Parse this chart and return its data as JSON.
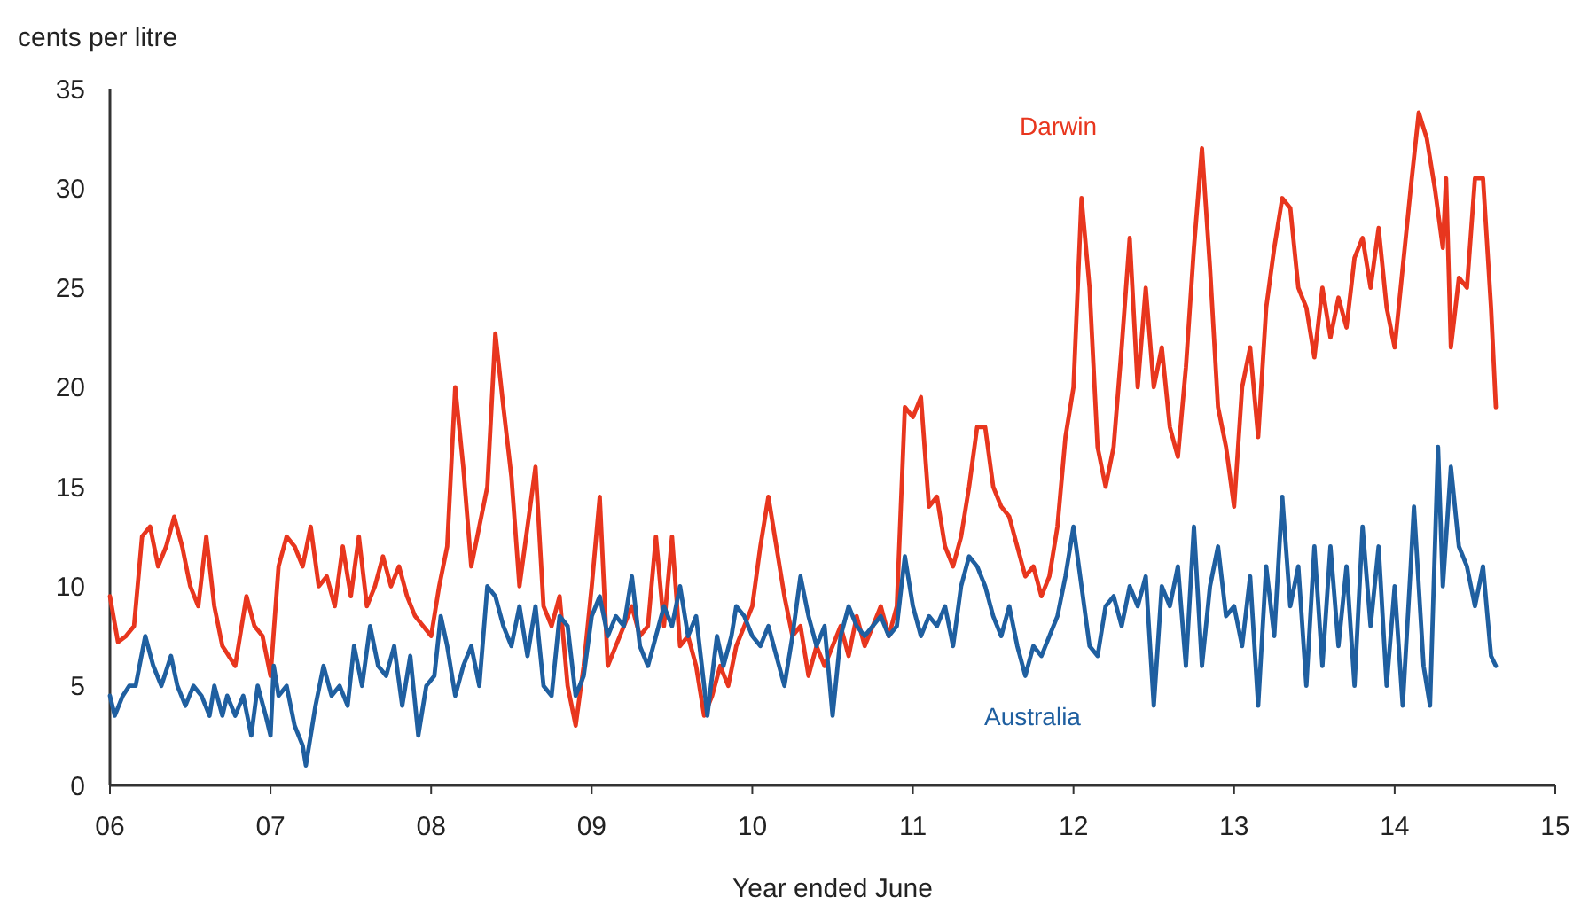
{
  "chart_data": {
    "type": "line",
    "xlabel": "Year ended June",
    "ylabel": "cents per litre",
    "xlim": [
      6,
      15
    ],
    "xticks": [
      {
        "value": 6,
        "label": "06"
      },
      {
        "value": 7,
        "label": "07"
      },
      {
        "value": 8,
        "label": "08"
      },
      {
        "value": 9,
        "label": "09"
      },
      {
        "value": 10,
        "label": "10"
      },
      {
        "value": 11,
        "label": "11"
      },
      {
        "value": 12,
        "label": "12"
      },
      {
        "value": 13,
        "label": "13"
      },
      {
        "value": 14,
        "label": "14"
      },
      {
        "value": 15,
        "label": "15"
      }
    ],
    "ylim": [
      0,
      35
    ],
    "yticks": [
      0,
      5,
      10,
      15,
      20,
      25,
      30,
      35
    ],
    "grid": false,
    "legend": false,
    "marker": "none",
    "line_style": "solid",
    "series": [
      {
        "name": "Darwin",
        "color": "#e8361e",
        "x": [
          6.0,
          6.05,
          6.1,
          6.15,
          6.2,
          6.25,
          6.3,
          6.35,
          6.4,
          6.45,
          6.5,
          6.55,
          6.6,
          6.65,
          6.7,
          6.78,
          6.85,
          6.9,
          6.95,
          7.0,
          7.05,
          7.1,
          7.15,
          7.2,
          7.25,
          7.3,
          7.35,
          7.4,
          7.45,
          7.5,
          7.55,
          7.6,
          7.65,
          7.7,
          7.75,
          7.8,
          7.85,
          7.9,
          7.95,
          8.0,
          8.05,
          8.1,
          8.15,
          8.2,
          8.25,
          8.3,
          8.35,
          8.4,
          8.45,
          8.5,
          8.55,
          8.6,
          8.65,
          8.7,
          8.75,
          8.8,
          8.85,
          8.9,
          8.95,
          9.0,
          9.05,
          9.1,
          9.15,
          9.2,
          9.25,
          9.3,
          9.35,
          9.4,
          9.45,
          9.5,
          9.55,
          9.6,
          9.65,
          9.7,
          9.75,
          9.8,
          9.85,
          9.9,
          9.95,
          10.0,
          10.05,
          10.1,
          10.15,
          10.2,
          10.25,
          10.3,
          10.35,
          10.4,
          10.45,
          10.5,
          10.55,
          10.6,
          10.65,
          10.7,
          10.75,
          10.8,
          10.85,
          10.9,
          10.95,
          11.0,
          11.05,
          11.1,
          11.15,
          11.2,
          11.25,
          11.3,
          11.35,
          11.4,
          11.45,
          11.5,
          11.55,
          11.6,
          11.65,
          11.7,
          11.75,
          11.8,
          11.85,
          11.9,
          11.95,
          12.0,
          12.05,
          12.1,
          12.15,
          12.2,
          12.25,
          12.3,
          12.35,
          12.4,
          12.45,
          12.5,
          12.55,
          12.6,
          12.65,
          12.7,
          12.75,
          12.8,
          12.85,
          12.9,
          12.95,
          13.0,
          13.05,
          13.1,
          13.15,
          13.2,
          13.25,
          13.3,
          13.35,
          13.4,
          13.45,
          13.5,
          13.55,
          13.6,
          13.65,
          13.7,
          13.75,
          13.8,
          13.85,
          13.9,
          13.95,
          14.0,
          14.1,
          14.15,
          14.2,
          14.25,
          14.3,
          14.32,
          14.35,
          14.4,
          14.45,
          14.5,
          14.55,
          14.6,
          14.63
        ],
        "values": [
          9.5,
          7.2,
          7.5,
          8,
          12.5,
          13,
          11,
          12,
          13.5,
          12,
          10,
          9,
          12.5,
          9,
          7,
          6,
          9.5,
          8,
          7.5,
          5.5,
          11,
          12.5,
          12,
          11,
          13,
          10,
          10.5,
          9,
          12,
          9.5,
          12.5,
          9,
          10,
          11.5,
          10,
          11,
          9.5,
          8.5,
          8,
          7.5,
          10,
          12,
          20,
          16,
          11,
          13,
          15,
          22.7,
          19,
          15.5,
          10,
          13,
          16,
          9,
          8,
          9.5,
          5,
          3,
          6,
          10,
          14.5,
          6,
          7,
          8,
          9,
          7.5,
          8,
          12.5,
          8,
          12.5,
          7,
          7.5,
          6,
          3.5,
          4.5,
          6,
          5,
          7,
          8,
          9,
          12,
          14.5,
          12,
          9.5,
          7.5,
          8,
          5.5,
          7,
          6,
          7,
          8,
          6.5,
          8.5,
          7,
          8,
          9,
          7.5,
          9,
          19,
          18.5,
          19.5,
          14,
          14.5,
          12,
          11,
          12.5,
          15,
          18,
          18,
          15,
          14,
          13.5,
          12,
          10.5,
          11,
          9.5,
          10.5,
          13,
          17.5,
          20,
          29.5,
          25,
          17,
          15,
          17,
          22,
          27.5,
          20,
          25,
          20,
          22,
          18,
          16.5,
          21,
          27,
          32,
          26,
          19,
          17,
          14,
          20,
          22,
          17.5,
          24,
          27,
          29.5,
          29,
          25,
          24,
          21.5,
          25,
          22.5,
          24.5,
          23,
          26.5,
          27.5,
          25,
          28,
          24,
          22,
          30,
          33.8,
          32.5,
          30,
          27,
          30.5,
          22,
          25.5,
          25,
          30.5,
          30.5,
          24,
          19
        ]
      },
      {
        "name": "Australia",
        "color": "#1f5fa0",
        "x": [
          6.0,
          6.03,
          6.08,
          6.12,
          6.16,
          6.22,
          6.27,
          6.32,
          6.38,
          6.42,
          6.47,
          6.52,
          6.57,
          6.62,
          6.65,
          6.7,
          6.73,
          6.78,
          6.83,
          6.88,
          6.92,
          6.97,
          7.0,
          7.02,
          7.05,
          7.1,
          7.15,
          7.2,
          7.22,
          7.28,
          7.33,
          7.38,
          7.43,
          7.48,
          7.52,
          7.57,
          7.62,
          7.67,
          7.72,
          7.77,
          7.82,
          7.87,
          7.92,
          7.97,
          8.02,
          8.06,
          8.1,
          8.15,
          8.2,
          8.25,
          8.3,
          8.35,
          8.4,
          8.45,
          8.5,
          8.55,
          8.6,
          8.65,
          8.7,
          8.75,
          8.8,
          8.85,
          8.9,
          8.95,
          9.0,
          9.05,
          9.1,
          9.15,
          9.2,
          9.25,
          9.3,
          9.35,
          9.4,
          9.45,
          9.5,
          9.55,
          9.6,
          9.65,
          9.7,
          9.72,
          9.78,
          9.82,
          9.87,
          9.9,
          9.95,
          10.0,
          10.05,
          10.1,
          10.15,
          10.2,
          10.25,
          10.3,
          10.35,
          10.4,
          10.45,
          10.5,
          10.55,
          10.6,
          10.65,
          10.7,
          10.75,
          10.8,
          10.85,
          10.9,
          10.95,
          11.0,
          11.05,
          11.1,
          11.15,
          11.2,
          11.25,
          11.3,
          11.35,
          11.4,
          11.45,
          11.5,
          11.55,
          11.6,
          11.65,
          11.7,
          11.75,
          11.8,
          11.85,
          11.9,
          11.95,
          12.0,
          12.05,
          12.1,
          12.15,
          12.2,
          12.25,
          12.3,
          12.35,
          12.4,
          12.45,
          12.5,
          12.55,
          12.6,
          12.65,
          12.7,
          12.75,
          12.8,
          12.85,
          12.9,
          12.95,
          13.0,
          13.05,
          13.1,
          13.15,
          13.2,
          13.25,
          13.3,
          13.35,
          13.4,
          13.45,
          13.5,
          13.55,
          13.6,
          13.65,
          13.7,
          13.75,
          13.8,
          13.85,
          13.9,
          13.95,
          14.0,
          14.05,
          14.1,
          14.12,
          14.18,
          14.22,
          14.27,
          14.3,
          14.35,
          14.4,
          14.45,
          14.5,
          14.55,
          14.6,
          14.63
        ],
        "values": [
          4.5,
          3.5,
          4.5,
          5,
          5,
          7.5,
          6,
          5,
          6.5,
          5,
          4,
          5,
          4.5,
          3.5,
          5,
          3.5,
          4.5,
          3.5,
          4.5,
          2.5,
          5,
          3.5,
          2.5,
          6,
          4.5,
          5,
          3,
          2,
          1,
          4,
          6,
          4.5,
          5,
          4,
          7,
          5,
          8,
          6,
          5.5,
          7,
          4,
          6.5,
          2.5,
          5,
          5.5,
          8.5,
          7,
          4.5,
          6,
          7,
          5,
          10,
          9.5,
          8,
          7,
          9,
          6.5,
          9,
          5,
          4.5,
          8.5,
          8,
          4.5,
          5.5,
          8.5,
          9.5,
          7.5,
          8.5,
          8,
          10.5,
          7,
          6,
          7.5,
          9,
          8,
          10,
          7.5,
          8.5,
          5,
          3.5,
          7.5,
          6,
          7.5,
          9,
          8.5,
          7.5,
          7,
          8,
          6.5,
          5,
          7.5,
          10.5,
          8.5,
          7,
          8,
          3.5,
          7.5,
          9,
          8,
          7.5,
          8,
          8.5,
          7.5,
          8,
          11.5,
          9,
          7.5,
          8.5,
          8,
          9,
          7,
          10,
          11.5,
          11,
          10,
          8.5,
          7.5,
          9,
          7,
          5.5,
          7,
          6.5,
          7.5,
          8.5,
          10.5,
          13,
          10,
          7,
          6.5,
          9,
          9.5,
          8,
          10,
          9,
          10.5,
          4,
          10,
          9,
          11,
          6,
          13,
          6,
          10,
          12,
          8.5,
          9,
          7,
          10.5,
          4,
          11,
          7.5,
          14.5,
          9,
          11,
          5,
          12,
          6,
          12,
          7,
          11,
          5,
          13,
          8,
          12,
          5,
          10,
          4,
          11,
          14,
          6,
          4,
          17,
          10,
          16,
          12,
          11,
          9,
          11,
          6.5,
          6
        ]
      }
    ]
  }
}
